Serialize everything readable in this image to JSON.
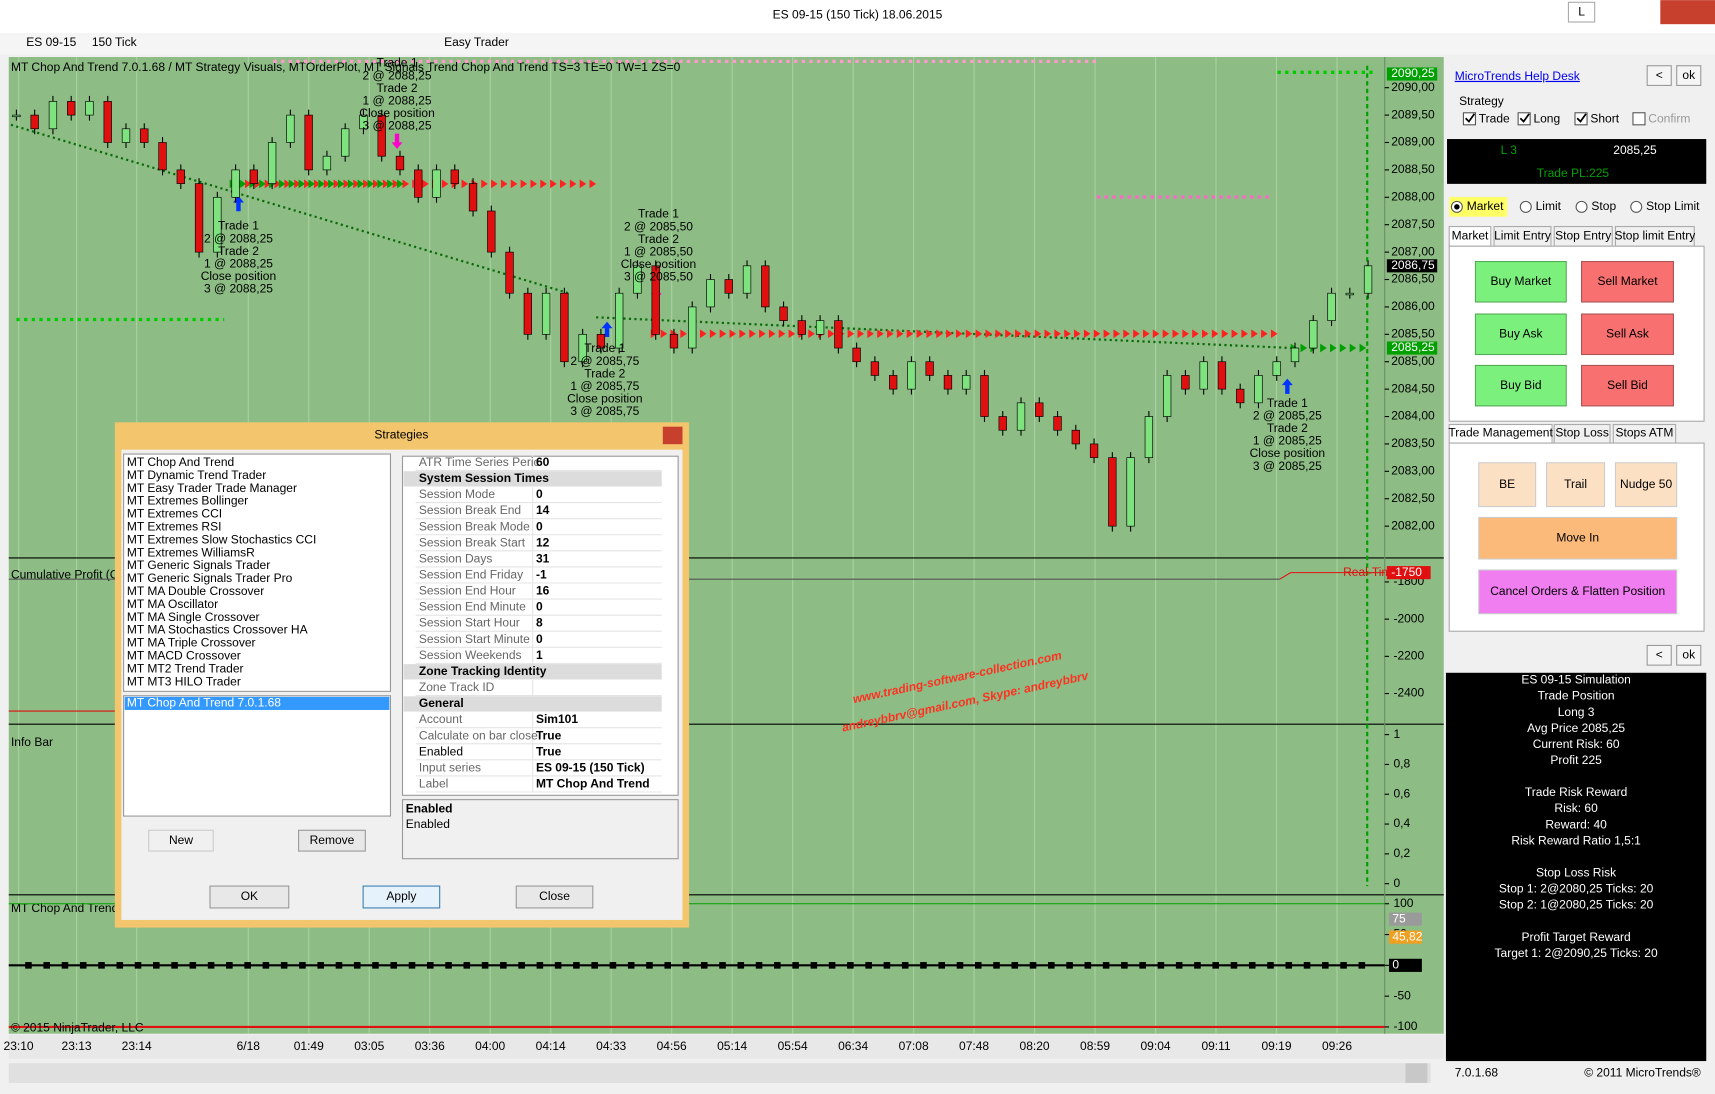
{
  "window": {
    "title": "ES 09-15 (150 Tick)  18.06.2015",
    "mode_button": "L"
  },
  "toolbar": {
    "instrument": "ES 09-15",
    "interval": "150 Tick",
    "tool": "Easy Trader"
  },
  "chart": {
    "header": "MT Chop And Trend 7.0.1.68 / MT Strategy Visuals, MTOrderPlot, MT Signals Trend Chop And Trend TS=3 TE=0 TW=1 ZS=0",
    "ylim": [
      2081.46,
      2090.56
    ],
    "yticks": [
      {
        "value": 2090,
        "label": "2090,00"
      },
      {
        "value": 2089.5,
        "label": "2089,50"
      },
      {
        "value": 2089,
        "label": "2089,00"
      },
      {
        "value": 2088.5,
        "label": "2088,50"
      },
      {
        "value": 2088,
        "label": "2088,00"
      },
      {
        "value": 2087.5,
        "label": "2087,50"
      },
      {
        "value": 2087,
        "label": "2087,00"
      },
      {
        "value": 2086.5,
        "label": "2086,50"
      },
      {
        "value": 2086,
        "label": "2086,00"
      },
      {
        "value": 2085.5,
        "label": "2085,50"
      },
      {
        "value": 2085,
        "label": "2085,00"
      },
      {
        "value": 2084.5,
        "label": "2084,50"
      },
      {
        "value": 2084,
        "label": "2084,00"
      },
      {
        "value": 2083.5,
        "label": "2083,50"
      },
      {
        "value": 2083,
        "label": "2083,00"
      },
      {
        "value": 2082.5,
        "label": "2082,50"
      },
      {
        "value": 2082,
        "label": "2082,00"
      }
    ],
    "closes": [
      2089.5,
      2089.25,
      2089.75,
      2089.5,
      2089.75,
      2089.0,
      2089.25,
      2089.0,
      2088.5,
      2088.25,
      2087.0,
      2088.0,
      2088.5,
      2088.25,
      2089.0,
      2089.5,
      2088.5,
      2088.75,
      2089.25,
      2089.5,
      2088.75,
      2088.5,
      2088.0,
      2088.5,
      2088.25,
      2087.75,
      2087.0,
      2086.25,
      2085.5,
      2086.25,
      2085.0,
      2085.5,
      2085.25,
      2086.25,
      2086.75,
      2085.5,
      2085.25,
      2086.0,
      2086.5,
      2086.25,
      2086.75,
      2086.0,
      2085.75,
      2085.5,
      2085.75,
      2085.25,
      2085.0,
      2084.75,
      2084.5,
      2085.0,
      2084.75,
      2084.5,
      2084.75,
      2084.0,
      2083.75,
      2084.25,
      2084.0,
      2083.75,
      2083.5,
      2083.25,
      2082.0,
      2083.25,
      2084.0,
      2084.75,
      2084.5,
      2085.0,
      2084.5,
      2084.25,
      2084.75,
      2085.0,
      2085.25,
      2085.75,
      2086.25,
      2086.25,
      2086.75
    ],
    "price_markers": [
      {
        "value": 2090.25,
        "label": "2090,25",
        "color": "#00a000"
      },
      {
        "value": 2086.75,
        "label": "2086,75",
        "color": "#000000"
      },
      {
        "value": 2085.25,
        "label": "2085,25",
        "color": "#00a000"
      }
    ],
    "x_labels": [
      "23:10",
      "23:13",
      "23:14",
      "6/18",
      "01:49",
      "03:05",
      "03:36",
      "04:00",
      "04:14",
      "04:33",
      "04:56",
      "05:14",
      "05:54",
      "06:34",
      "07:08",
      "07:48",
      "08:20",
      "08:59",
      "09:04",
      "09:11",
      "09:19",
      "09:26"
    ],
    "trade_notes": [
      [
        "Trade 1",
        "2 @ 2088,25",
        "Trade 2",
        "1 @ 2088,25",
        "Close position",
        "3 @ 2088,25"
      ],
      [
        "Trade 1",
        "2 @ 2088,25",
        "Trade 2",
        "1 @ 2088,25",
        "Close position",
        "3 @ 2088,25"
      ],
      [
        "Trade 1",
        "2 @ 2085,50",
        "Trade 2",
        "1 @ 2085,50",
        "Close position",
        "3 @ 2085,50"
      ],
      [
        "Trade 1",
        "2 @ 2085,75",
        "Trade 2",
        "1 @ 2085,75",
        "Close position",
        "3 @ 2085,75"
      ],
      [
        "Trade 1",
        "2 @ 2085,25",
        "Trade 2",
        "1 @ 2085,25",
        "Close position",
        "3 @ 2085,25"
      ]
    ],
    "copyright": "© 2015 NinjaTrader, LLC",
    "cumulative": {
      "label": "Cumulative Profit (Ca",
      "ylim": [
        -2553,
        -1671
      ],
      "yticks": [
        -1800,
        -2000,
        -2200,
        -2400
      ],
      "marker": {
        "value": -1750,
        "label": "-1750"
      },
      "overlay": "Real-Tim"
    },
    "info": {
      "label": "Info Bar",
      "ylim": [
        -0.06,
        1.07
      ],
      "yticks": [
        1,
        {
          "value": 0.8,
          "label": "0,8"
        },
        {
          "value": 0.6,
          "label": "0,6"
        },
        {
          "value": 0.4,
          "label": "0,4"
        },
        {
          "value": 0.2,
          "label": "0,2"
        },
        0
      ]
    },
    "chop": {
      "label": "MT Chop And Trend",
      "ylim": [
        -111,
        114.5
      ],
      "yticks": [
        100,
        50,
        0,
        -50,
        -100
      ],
      "markers": [
        {
          "value": 75,
          "label": "75",
          "color": "#9a9a9a"
        },
        {
          "value": 45.82,
          "label": "45,82",
          "color": "#f0a020"
        },
        {
          "value": 0,
          "label": "0",
          "color": "#000000"
        }
      ]
    }
  },
  "watermark": [
    "www.trading-software-collection.com",
    "andreybbrv@gmail.com, Skype: andreybbrv"
  ],
  "dialog": {
    "title": "Strategies",
    "items": [
      "MT Chop And Trend",
      "MT Dynamic Trend Trader",
      "MT Easy Trader Trade Manager",
      "MT Extremes Bollinger",
      "MT Extremes CCI",
      "MT Extremes RSI",
      "MT Extremes Slow Stochastics CCI",
      "MT Extremes WilliamsR",
      "MT Generic Signals Trader",
      "MT Generic Signals Trader Pro",
      "MT MA Double Crossover",
      "MT MA Oscillator",
      "MT MA Single Crossover",
      "MT MA Stochastics Crossover HA",
      "MT MA Triple Crossover",
      "MT MACD Crossover",
      "MT MT2 Trend Trader",
      "MT MT3 HILO Trader"
    ],
    "selected": "MT Chop And Trend 7.0.1.68",
    "new": "New",
    "remove": "Remove",
    "properties": [
      {
        "key": "ATR Time Series Peric",
        "value": 60
      },
      {
        "section": "System Session Times"
      },
      {
        "key": "Session Mode",
        "value": 0
      },
      {
        "key": "Session Break End",
        "value": 14
      },
      {
        "key": "Session Break Mode",
        "value": 0
      },
      {
        "key": "Session Break Start",
        "value": 12
      },
      {
        "key": "Session Days",
        "value": 31
      },
      {
        "key": "Session End Friday",
        "value": -1
      },
      {
        "key": "Session End Hour",
        "value": 16
      },
      {
        "key": "Session End Minute",
        "value": 0
      },
      {
        "key": "Session Start Hour",
        "value": 8
      },
      {
        "key": "Session Start Minute",
        "value": 0
      },
      {
        "key": "Session Weekends",
        "value": 1
      },
      {
        "section": "Zone Tracking Identity"
      },
      {
        "key": "Zone Track ID"
      },
      {
        "section": "General"
      },
      {
        "key": "Account",
        "value": "Sim101"
      },
      {
        "key": "Calculate on bar close",
        "value": "True"
      },
      {
        "key": "Enabled",
        "value": "True"
      },
      {
        "key": "Input series",
        "value": "ES 09-15 (150 Tick)"
      },
      {
        "key": "Label",
        "value": "MT Chop And Trend"
      }
    ],
    "description_title": "Enabled",
    "description": "Enabled",
    "ok": "OK",
    "apply": "Apply",
    "close": "Close"
  },
  "side": {
    "help": "MicroTrends Help Desk",
    "back": "<",
    "ok": "ok",
    "strategy": "Strategy",
    "checks": [
      {
        "label": "Trade",
        "checked": true
      },
      {
        "label": "Long",
        "checked": true
      },
      {
        "label": "Short",
        "checked": true
      },
      {
        "label": "Confirm",
        "checked": false
      }
    ],
    "position": "L 3",
    "price": "2085,25",
    "pl": "Trade PL:225",
    "order_types": [
      "Market",
      "Limit",
      "Stop",
      "Stop Limit"
    ],
    "order_tabs": [
      "Market",
      "Limit Entry",
      "Stop Entry",
      "Stop limit Entry"
    ],
    "buttons": [
      [
        "Buy Market",
        "Sell Market"
      ],
      [
        "Buy Ask",
        "Sell Ask"
      ],
      [
        "Buy Bid",
        "Sell Bid"
      ]
    ],
    "mgmt_tabs": [
      "Trade Management",
      "Stop Loss",
      "Stops ATM"
    ],
    "be": "BE",
    "trail": "Trail",
    "nudge": "Nudge 50",
    "move_in": "Move In",
    "cancel": "Cancel Orders & Flatten Position",
    "info": [
      [
        "ES 09-15 Simulation",
        "Trade Position",
        "Long 3",
        "Avg Price 2085,25",
        "Current Risk: 60",
        "Profit 225"
      ],
      [
        "Trade Risk Reward",
        "Risk: 60",
        "Reward: 40",
        "Risk Reward Ratio 1,5:1"
      ],
      [
        "Stop Loss Risk",
        "Stop 1: 2@2080,25 Ticks: 20",
        "Stop 2: 1@2080,25 Ticks: 20"
      ],
      [
        "Profit Target Reward",
        "Target 1: 2@2090,25 Ticks: 20"
      ]
    ],
    "version": "7.0.1.68",
    "footer": "© 2011 MicroTrends®"
  }
}
